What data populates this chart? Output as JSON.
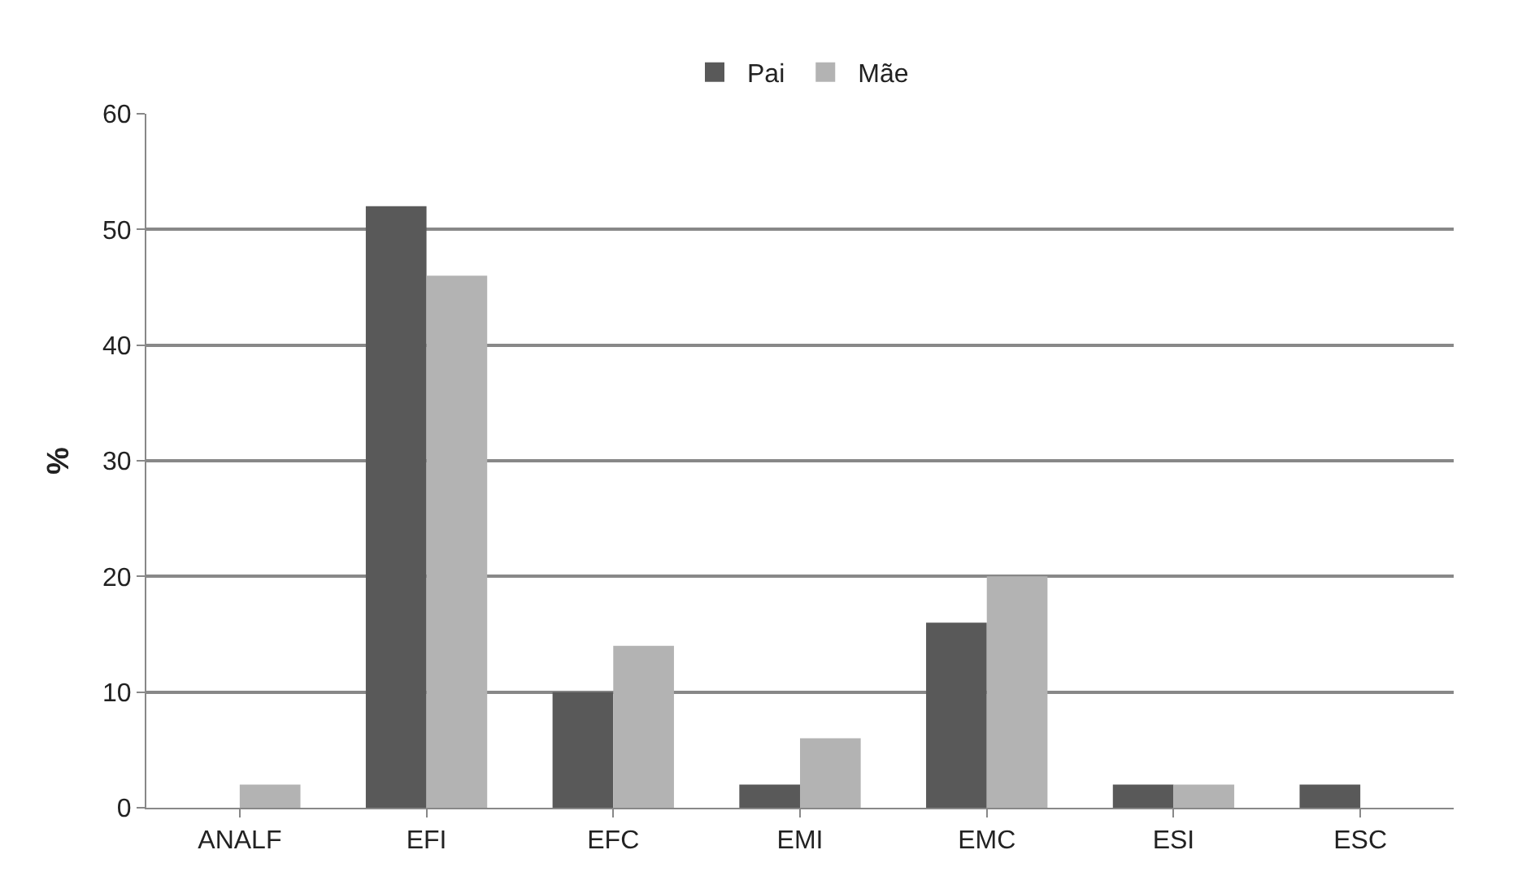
{
  "chart_data": {
    "type": "bar",
    "ylabel": "%",
    "categories": [
      "ANALF",
      "EFI",
      "EFC",
      "EMI",
      "EMC",
      "ESI",
      "ESC"
    ],
    "series": [
      {
        "name": "Pai",
        "color": "#595959",
        "values": [
          0,
          52,
          10,
          2,
          16,
          2,
          2
        ]
      },
      {
        "name": "Mãe",
        "color": "#b3b3b3",
        "values": [
          2,
          46,
          14,
          6,
          20,
          2,
          0
        ]
      }
    ],
    "ylim": [
      0,
      60
    ],
    "yticks": [
      0,
      10,
      20,
      30,
      40,
      50,
      60
    ],
    "grid": "y",
    "legend": "top"
  }
}
